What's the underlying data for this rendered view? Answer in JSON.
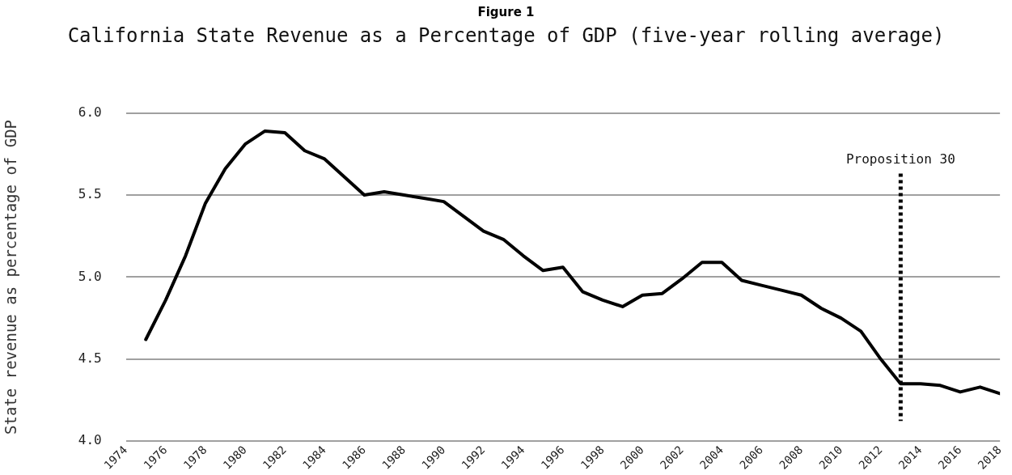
{
  "chart_data": {
    "type": "line",
    "title": "Figure 1",
    "subtitle": "California State Revenue as a Percentage of GDP (five-year rolling average)",
    "ylabel": "State revenue as percentage of GDP",
    "x": [
      1975,
      1976,
      1977,
      1978,
      1979,
      1980,
      1981,
      1982,
      1983,
      1984,
      1985,
      1986,
      1987,
      1988,
      1989,
      1990,
      1991,
      1992,
      1993,
      1994,
      1995,
      1996,
      1997,
      1998,
      1999,
      2000,
      2001,
      2002,
      2003,
      2004,
      2005,
      2006,
      2007,
      2008,
      2009,
      2010,
      2011,
      2012,
      2013,
      2014,
      2015,
      2016,
      2017,
      2018
    ],
    "series": [
      {
        "color": "#000000",
        "values": [
          4.62,
          4.86,
          5.13,
          5.45,
          5.66,
          5.81,
          5.89,
          5.88,
          5.77,
          5.72,
          5.61,
          5.5,
          5.52,
          5.5,
          5.48,
          5.46,
          5.37,
          5.28,
          5.23,
          5.13,
          5.04,
          5.06,
          4.91,
          4.86,
          4.82,
          4.89,
          4.9,
          4.99,
          5.09,
          5.09,
          4.98,
          4.95,
          4.92,
          4.89,
          4.81,
          4.75,
          4.67,
          4.5,
          4.35,
          4.35,
          4.34,
          4.3,
          4.33,
          4.29
        ]
      }
    ],
    "xlim": [
      1974,
      2018
    ],
    "xticks": [
      1974,
      1976,
      1978,
      1980,
      1982,
      1984,
      1986,
      1988,
      1990,
      1992,
      1994,
      1996,
      1998,
      2000,
      2002,
      2004,
      2006,
      2008,
      2010,
      2012,
      2014,
      2016,
      2018
    ],
    "ylim": [
      4,
      6
    ],
    "yticks": [
      {
        "value": 4,
        "label": "4.0"
      },
      {
        "value": 4.5,
        "label": "4.5"
      },
      {
        "value": 5,
        "label": "5.0"
      },
      {
        "value": 5.5,
        "label": "5.5"
      },
      {
        "value": 6,
        "label": "6.0"
      }
    ],
    "ref_lines": [
      {
        "axis": "x",
        "value": 2013,
        "label": "Proposition 30",
        "color": "#000000",
        "line_style": "dotted"
      }
    ],
    "grid": "y",
    "legend": false,
    "marker": "none",
    "line_style": "solid"
  }
}
